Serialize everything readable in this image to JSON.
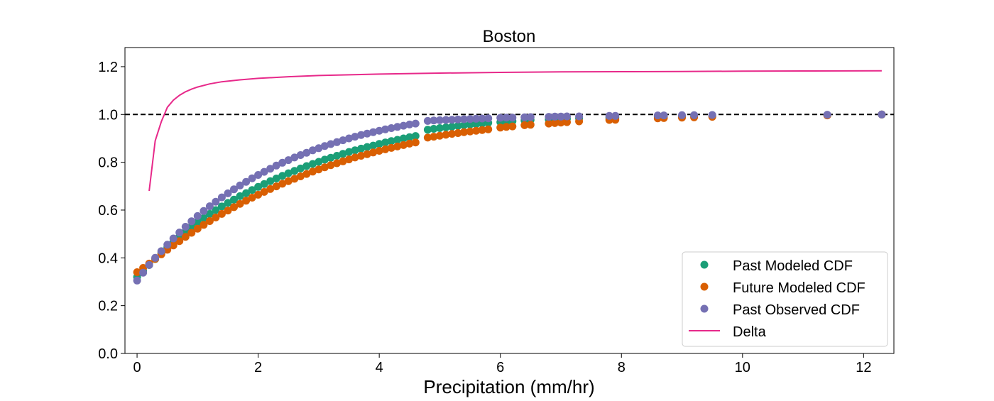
{
  "chart_data": {
    "type": "scatter",
    "title": "Boston",
    "xlabel": "Precipitation (mm/hr)",
    "ylabel": "",
    "xlim": [
      -0.2,
      12.5
    ],
    "ylim": [
      0.0,
      1.28
    ],
    "xticks": [
      0,
      2,
      4,
      6,
      8,
      10,
      12
    ],
    "xtick_labels": [
      "0",
      "2",
      "4",
      "6",
      "8",
      "10",
      "12"
    ],
    "yticks": [
      0.0,
      0.2,
      0.4,
      0.6,
      0.8,
      1.0,
      1.2
    ],
    "ytick_labels": [
      "0.0",
      "0.2",
      "0.4",
      "0.6",
      "0.8",
      "1.0",
      "1.2"
    ],
    "grid": false,
    "legend_position": "lower-right",
    "reference_line": {
      "y": 1.0,
      "style": "dashed",
      "color": "#000000"
    },
    "series": [
      {
        "name": "Past Modeled CDF",
        "kind": "scatter",
        "color": "#1b9e77",
        "points": [
          [
            0,
            0.32
          ],
          [
            0.1,
            0.345
          ],
          [
            0.2,
            0.37
          ],
          [
            0.3,
            0.395
          ],
          [
            0.4,
            0.42
          ],
          [
            0.5,
            0.444
          ],
          [
            0.6,
            0.467
          ],
          [
            0.7,
            0.489
          ],
          [
            0.8,
            0.51
          ],
          [
            0.9,
            0.53
          ],
          [
            1.0,
            0.549
          ],
          [
            1.1,
            0.567
          ],
          [
            1.2,
            0.584
          ],
          [
            1.3,
            0.6
          ],
          [
            1.4,
            0.615
          ],
          [
            1.5,
            0.63
          ],
          [
            1.6,
            0.644
          ],
          [
            1.7,
            0.658
          ],
          [
            1.8,
            0.671
          ],
          [
            1.9,
            0.684
          ],
          [
            2.0,
            0.697
          ],
          [
            2.1,
            0.709
          ],
          [
            2.2,
            0.721
          ],
          [
            2.3,
            0.732
          ],
          [
            2.4,
            0.743
          ],
          [
            2.5,
            0.754
          ],
          [
            2.6,
            0.764
          ],
          [
            2.7,
            0.774
          ],
          [
            2.8,
            0.784
          ],
          [
            2.9,
            0.793
          ],
          [
            3.0,
            0.802
          ],
          [
            3.1,
            0.811
          ],
          [
            3.2,
            0.819
          ],
          [
            3.3,
            0.827
          ],
          [
            3.4,
            0.835
          ],
          [
            3.5,
            0.843
          ],
          [
            3.6,
            0.85
          ],
          [
            3.7,
            0.857
          ],
          [
            3.8,
            0.864
          ],
          [
            3.9,
            0.87
          ],
          [
            4.0,
            0.877
          ],
          [
            4.1,
            0.883
          ],
          [
            4.2,
            0.889
          ],
          [
            4.3,
            0.894
          ],
          [
            4.4,
            0.9
          ],
          [
            4.5,
            0.905
          ],
          [
            4.6,
            0.91
          ],
          [
            4.8,
            0.936
          ],
          [
            4.9,
            0.94
          ],
          [
            5.0,
            0.943
          ],
          [
            5.1,
            0.946
          ],
          [
            5.2,
            0.949
          ],
          [
            5.3,
            0.952
          ],
          [
            5.4,
            0.955
          ],
          [
            5.5,
            0.958
          ],
          [
            5.6,
            0.96
          ],
          [
            5.7,
            0.962
          ],
          [
            5.8,
            0.965
          ],
          [
            6.0,
            0.968
          ],
          [
            6.1,
            0.97
          ],
          [
            6.2,
            0.972
          ],
          [
            6.4,
            0.975
          ],
          [
            6.5,
            0.977
          ],
          [
            6.8,
            0.979
          ],
          [
            6.9,
            0.98
          ],
          [
            7.0,
            0.981
          ],
          [
            7.1,
            0.982
          ],
          [
            7.3,
            0.984
          ],
          [
            7.8,
            0.986
          ],
          [
            7.9,
            0.987
          ],
          [
            8.6,
            0.99
          ],
          [
            8.7,
            0.991
          ],
          [
            9.0,
            0.992
          ],
          [
            9.2,
            0.993
          ],
          [
            9.5,
            0.994
          ],
          [
            11.4,
            0.997
          ],
          [
            12.3,
            1.0
          ]
        ]
      },
      {
        "name": "Future Modeled CDF",
        "kind": "scatter",
        "color": "#d95f02",
        "points": [
          [
            0,
            0.34
          ],
          [
            0.1,
            0.358
          ],
          [
            0.2,
            0.376
          ],
          [
            0.3,
            0.396
          ],
          [
            0.4,
            0.415
          ],
          [
            0.5,
            0.434
          ],
          [
            0.6,
            0.452
          ],
          [
            0.7,
            0.47
          ],
          [
            0.8,
            0.488
          ],
          [
            0.9,
            0.505
          ],
          [
            1.0,
            0.522
          ],
          [
            1.1,
            0.538
          ],
          [
            1.2,
            0.554
          ],
          [
            1.3,
            0.569
          ],
          [
            1.4,
            0.584
          ],
          [
            1.5,
            0.598
          ],
          [
            1.6,
            0.612
          ],
          [
            1.7,
            0.626
          ],
          [
            1.8,
            0.639
          ],
          [
            1.9,
            0.652
          ],
          [
            2.0,
            0.664
          ],
          [
            2.1,
            0.676
          ],
          [
            2.2,
            0.688
          ],
          [
            2.3,
            0.699
          ],
          [
            2.4,
            0.71
          ],
          [
            2.5,
            0.721
          ],
          [
            2.6,
            0.731
          ],
          [
            2.7,
            0.741
          ],
          [
            2.8,
            0.751
          ],
          [
            2.9,
            0.761
          ],
          [
            3.0,
            0.77
          ],
          [
            3.1,
            0.779
          ],
          [
            3.2,
            0.788
          ],
          [
            3.3,
            0.796
          ],
          [
            3.4,
            0.804
          ],
          [
            3.5,
            0.812
          ],
          [
            3.6,
            0.82
          ],
          [
            3.7,
            0.827
          ],
          [
            3.8,
            0.834
          ],
          [
            3.9,
            0.841
          ],
          [
            4.0,
            0.848
          ],
          [
            4.1,
            0.854
          ],
          [
            4.2,
            0.86
          ],
          [
            4.3,
            0.866
          ],
          [
            4.4,
            0.872
          ],
          [
            4.5,
            0.878
          ],
          [
            4.6,
            0.883
          ],
          [
            4.8,
            0.903
          ],
          [
            4.9,
            0.907
          ],
          [
            5.0,
            0.911
          ],
          [
            5.1,
            0.915
          ],
          [
            5.2,
            0.919
          ],
          [
            5.3,
            0.922
          ],
          [
            5.4,
            0.926
          ],
          [
            5.5,
            0.929
          ],
          [
            5.6,
            0.932
          ],
          [
            5.7,
            0.935
          ],
          [
            5.8,
            0.938
          ],
          [
            6.0,
            0.945
          ],
          [
            6.1,
            0.948
          ],
          [
            6.2,
            0.95
          ],
          [
            6.4,
            0.955
          ],
          [
            6.5,
            0.957
          ],
          [
            6.8,
            0.962
          ],
          [
            6.9,
            0.964
          ],
          [
            7.0,
            0.966
          ],
          [
            7.1,
            0.968
          ],
          [
            7.3,
            0.971
          ],
          [
            7.8,
            0.977
          ],
          [
            7.9,
            0.978
          ],
          [
            8.6,
            0.984
          ],
          [
            8.7,
            0.985
          ],
          [
            9.0,
            0.987
          ],
          [
            9.2,
            0.988
          ],
          [
            9.5,
            0.99
          ],
          [
            11.4,
            0.996
          ],
          [
            12.3,
            1.0
          ]
        ]
      },
      {
        "name": "Past Observed CDF",
        "kind": "scatter",
        "color": "#7570b3",
        "points": [
          [
            0,
            0.305
          ],
          [
            0.1,
            0.338
          ],
          [
            0.2,
            0.37
          ],
          [
            0.3,
            0.4
          ],
          [
            0.4,
            0.428
          ],
          [
            0.5,
            0.455
          ],
          [
            0.6,
            0.481
          ],
          [
            0.7,
            0.506
          ],
          [
            0.8,
            0.53
          ],
          [
            0.9,
            0.553
          ],
          [
            1.0,
            0.575
          ],
          [
            1.1,
            0.596
          ],
          [
            1.2,
            0.616
          ],
          [
            1.3,
            0.635
          ],
          [
            1.4,
            0.653
          ],
          [
            1.5,
            0.67
          ],
          [
            1.6,
            0.687
          ],
          [
            1.7,
            0.703
          ],
          [
            1.8,
            0.718
          ],
          [
            1.9,
            0.733
          ],
          [
            2.0,
            0.747
          ],
          [
            2.1,
            0.76
          ],
          [
            2.2,
            0.773
          ],
          [
            2.3,
            0.786
          ],
          [
            2.4,
            0.798
          ],
          [
            2.5,
            0.809
          ],
          [
            2.6,
            0.82
          ],
          [
            2.7,
            0.83
          ],
          [
            2.8,
            0.84
          ],
          [
            2.9,
            0.85
          ],
          [
            3.0,
            0.859
          ],
          [
            3.1,
            0.868
          ],
          [
            3.2,
            0.876
          ],
          [
            3.3,
            0.884
          ],
          [
            3.4,
            0.892
          ],
          [
            3.5,
            0.9
          ],
          [
            3.6,
            0.907
          ],
          [
            3.7,
            0.914
          ],
          [
            3.8,
            0.92
          ],
          [
            3.9,
            0.926
          ],
          [
            4.0,
            0.932
          ],
          [
            4.1,
            0.938
          ],
          [
            4.2,
            0.943
          ],
          [
            4.3,
            0.948
          ],
          [
            4.4,
            0.953
          ],
          [
            4.5,
            0.958
          ],
          [
            4.6,
            0.962
          ],
          [
            4.8,
            0.973
          ],
          [
            4.9,
            0.975
          ],
          [
            5.0,
            0.976
          ],
          [
            5.1,
            0.977
          ],
          [
            5.2,
            0.978
          ],
          [
            5.3,
            0.979
          ],
          [
            5.4,
            0.98
          ],
          [
            5.5,
            0.981
          ],
          [
            5.6,
            0.982
          ],
          [
            5.7,
            0.983
          ],
          [
            5.8,
            0.984
          ],
          [
            6.0,
            0.986
          ],
          [
            6.1,
            0.987
          ],
          [
            6.2,
            0.987
          ],
          [
            6.4,
            0.988
          ],
          [
            6.5,
            0.989
          ],
          [
            6.8,
            0.99
          ],
          [
            6.9,
            0.991
          ],
          [
            7.0,
            0.991
          ],
          [
            7.1,
            0.992
          ],
          [
            7.3,
            0.992
          ],
          [
            7.8,
            0.994
          ],
          [
            7.9,
            0.994
          ],
          [
            8.6,
            0.996
          ],
          [
            8.7,
            0.996
          ],
          [
            9.0,
            0.997
          ],
          [
            9.2,
            0.997
          ],
          [
            9.5,
            0.998
          ],
          [
            11.4,
            0.999
          ],
          [
            12.3,
            1.0
          ]
        ]
      },
      {
        "name": "Delta",
        "kind": "line",
        "color": "#e7298a",
        "points": [
          [
            0.2,
            0.68
          ],
          [
            0.3,
            0.89
          ],
          [
            0.4,
            0.97
          ],
          [
            0.5,
            1.03
          ],
          [
            0.6,
            1.06
          ],
          [
            0.7,
            1.08
          ],
          [
            0.8,
            1.095
          ],
          [
            0.9,
            1.106
          ],
          [
            1.0,
            1.115
          ],
          [
            1.2,
            1.128
          ],
          [
            1.4,
            1.137
          ],
          [
            1.7,
            1.145
          ],
          [
            2.0,
            1.151
          ],
          [
            2.5,
            1.158
          ],
          [
            3.0,
            1.163
          ],
          [
            4.0,
            1.169
          ],
          [
            5.0,
            1.173
          ],
          [
            6.0,
            1.176
          ],
          [
            7.0,
            1.178
          ],
          [
            8.0,
            1.179
          ],
          [
            9.0,
            1.18
          ],
          [
            10.0,
            1.181
          ],
          [
            11.0,
            1.182
          ],
          [
            12.3,
            1.183
          ]
        ]
      }
    ]
  }
}
